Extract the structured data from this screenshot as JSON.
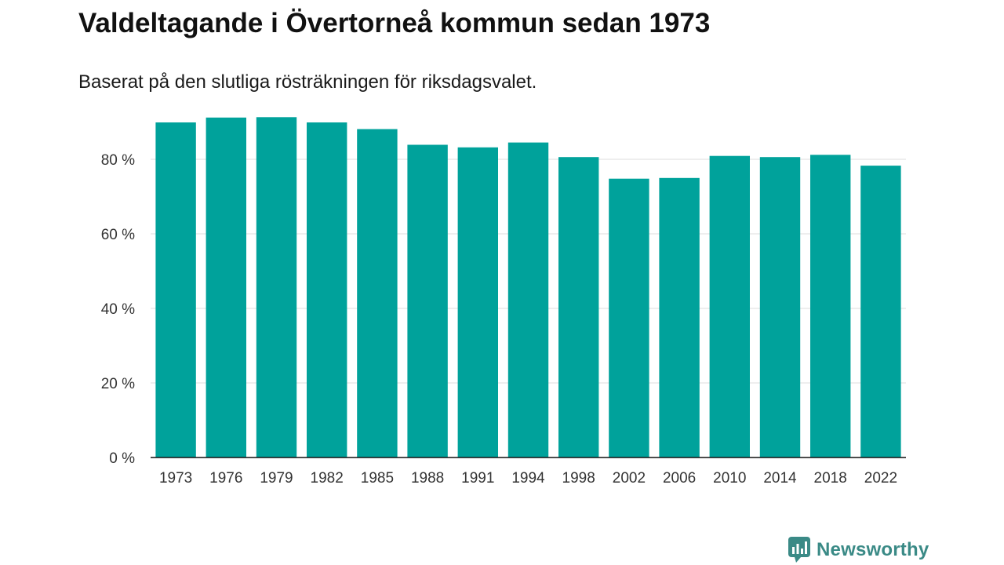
{
  "title": "Valdeltagande i Övertorneå kommun sedan 1973",
  "subtitle": "Baserat på den slutliga rösträkningen för riksdagsvalet.",
  "brand": {
    "name": "Newsworthy",
    "icon": "newsworthy-logo-icon"
  },
  "colors": {
    "bar": "#00a29b",
    "grid": "#dddddd",
    "axis": "#111111",
    "brand": "#3a8a86"
  },
  "chart_data": {
    "type": "bar",
    "title": "Valdeltagande i Övertorneå kommun sedan 1973",
    "subtitle": "Baserat på den slutliga rösträkningen för riksdagsvalet.",
    "categories": [
      "1973",
      "1976",
      "1979",
      "1982",
      "1985",
      "1988",
      "1991",
      "1994",
      "1998",
      "2002",
      "2006",
      "2010",
      "2014",
      "2018",
      "2022"
    ],
    "values": [
      89.9,
      91.2,
      91.3,
      89.9,
      88.1,
      83.9,
      83.2,
      84.5,
      80.6,
      74.8,
      75.0,
      80.9,
      80.6,
      81.2,
      78.3
    ],
    "ylim": [
      0,
      100
    ],
    "yticks": [
      0,
      20,
      40,
      60,
      80
    ],
    "ytick_labels": [
      "0 %",
      "20 %",
      "40 %",
      "60 %",
      "80 %"
    ],
    "grid": true,
    "legend": "none"
  }
}
